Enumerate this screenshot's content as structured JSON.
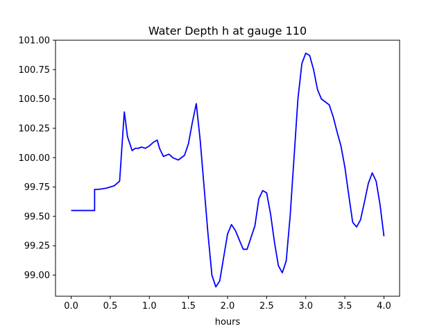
{
  "chart_data": {
    "type": "line",
    "title": "Water Depth h at gauge 110",
    "xlabel": "hours",
    "ylabel": "",
    "xlim": [
      -0.2,
      4.2
    ],
    "ylim": [
      98.82,
      101.0
    ],
    "x_ticks": [
      0.0,
      0.5,
      1.0,
      1.5,
      2.0,
      2.5,
      3.0,
      3.5,
      4.0
    ],
    "x_tick_labels": [
      "0.0",
      "0.5",
      "1.0",
      "1.5",
      "2.0",
      "2.5",
      "3.0",
      "3.5",
      "4.0"
    ],
    "y_ticks": [
      99.0,
      99.25,
      99.5,
      99.75,
      100.0,
      100.25,
      100.5,
      100.75,
      101.0
    ],
    "y_tick_labels": [
      "99.00",
      "99.25",
      "99.50",
      "99.75",
      "100.00",
      "100.25",
      "100.50",
      "100.75",
      "101.00"
    ],
    "grid": false,
    "legend": "none",
    "series": [
      {
        "color": "#0000ff",
        "x": [
          0.0,
          0.3,
          0.3,
          0.35,
          0.45,
          0.55,
          0.62,
          0.65,
          0.68,
          0.72,
          0.75,
          0.78,
          0.82,
          0.86,
          0.9,
          0.95,
          1.0,
          1.05,
          1.1,
          1.13,
          1.18,
          1.25,
          1.3,
          1.37,
          1.45,
          1.5,
          1.55,
          1.6,
          1.65,
          1.7,
          1.75,
          1.8,
          1.85,
          1.9,
          1.95,
          2.0,
          2.05,
          2.1,
          2.15,
          2.2,
          2.25,
          2.3,
          2.35,
          2.4,
          2.45,
          2.5,
          2.55,
          2.6,
          2.65,
          2.7,
          2.75,
          2.8,
          2.85,
          2.9,
          2.95,
          3.0,
          3.05,
          3.1,
          3.15,
          3.2,
          3.3,
          3.35,
          3.4,
          3.45,
          3.5,
          3.55,
          3.6,
          3.65,
          3.7,
          3.75,
          3.8,
          3.85,
          3.9,
          3.95,
          4.0
        ],
        "y": [
          99.55,
          99.55,
          99.73,
          99.73,
          99.74,
          99.76,
          99.8,
          100.1,
          100.39,
          100.18,
          100.12,
          100.06,
          100.08,
          100.08,
          100.09,
          100.08,
          100.1,
          100.13,
          100.15,
          100.08,
          100.01,
          100.03,
          100.0,
          99.98,
          100.02,
          100.12,
          100.3,
          100.46,
          100.15,
          99.75,
          99.35,
          99.0,
          98.9,
          98.95,
          99.15,
          99.35,
          99.43,
          99.38,
          99.3,
          99.22,
          99.22,
          99.32,
          99.42,
          99.65,
          99.72,
          99.7,
          99.52,
          99.28,
          99.08,
          99.02,
          99.12,
          99.5,
          100.0,
          100.5,
          100.8,
          100.89,
          100.87,
          100.75,
          100.58,
          100.5,
          100.45,
          100.35,
          100.22,
          100.1,
          99.92,
          99.68,
          99.45,
          99.41,
          99.47,
          99.62,
          99.78,
          99.87,
          99.8,
          99.6,
          99.33
        ]
      }
    ]
  }
}
